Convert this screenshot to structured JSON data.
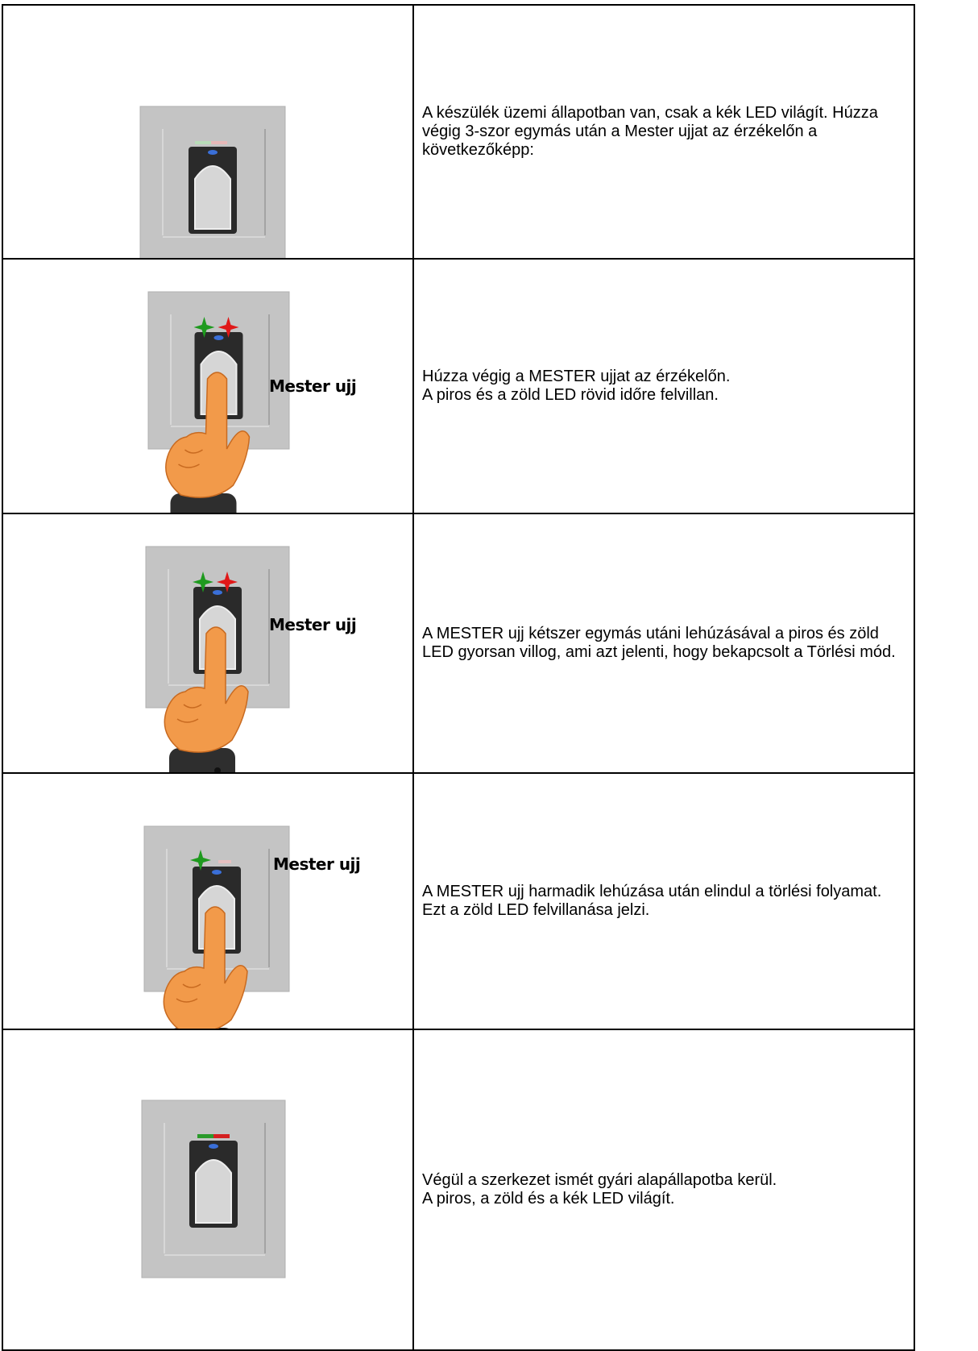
{
  "table": {
    "rows": [
      {
        "text": [
          "A készülék üzemi állapotban van, csak a kék LED világít. Húzza végig 3-szor egymás után a Mester ujjat az érzékelőn a következőképp:"
        ]
      },
      {
        "label": "Mester ujj",
        "text": [
          "Húzza végig a MESTER ujjat az érzékelőn.",
          "A piros és a zöld LED rövid időre felvillan."
        ]
      },
      {
        "label": "Mester ujj",
        "text": [
          "A MESTER ujj kétszer egymás utáni lehúzásával a piros és zöld LED gyorsan villog, ami azt jelenti, hogy bekapcsolt a Törlési mód."
        ]
      },
      {
        "label": "Mester ujj",
        "text": [
          "A MESTER ujj harmadik lehúzása után elindul a törlési folyamat.",
          "Ezt a zöld LED felvillanása jelzi."
        ]
      },
      {
        "text": [
          "Végül a szerkezet ismét gyári alapállapotba kerül.",
          "A piros, a zöld és a kék LED világít."
        ]
      }
    ]
  }
}
